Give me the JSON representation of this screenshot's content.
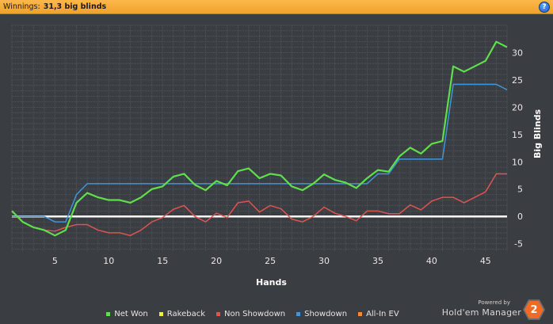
{
  "header": {
    "label": "Winnings:",
    "value": "31,3 big blinds",
    "help": "?"
  },
  "legend": [
    {
      "name": "Net Won",
      "color": "#5ee04a"
    },
    {
      "name": "Rakeback",
      "color": "#f0f03c"
    },
    {
      "name": "Non Showdown",
      "color": "#e0534f"
    },
    {
      "name": "Showdown",
      "color": "#3d96dc"
    },
    {
      "name": "All-In EV",
      "color": "#f08a3c"
    }
  ],
  "brand": {
    "powered": "Powered by",
    "name": "Hold'em Manager",
    "logo": "2"
  },
  "chart_data": {
    "type": "line",
    "xlabel": "Hands",
    "ylabel": "Big Blinds",
    "xlim": [
      1,
      47
    ],
    "ylim": [
      -6.5,
      35
    ],
    "xticks": [
      5,
      10,
      15,
      20,
      25,
      30,
      35,
      40,
      45
    ],
    "yticks": [
      -5,
      0,
      5,
      10,
      15,
      20,
      25,
      30
    ],
    "grid": true,
    "legend_position": "bottom",
    "x": [
      1,
      2,
      3,
      4,
      5,
      6,
      7,
      8,
      9,
      10,
      11,
      12,
      13,
      14,
      15,
      16,
      17,
      18,
      19,
      20,
      21,
      22,
      23,
      24,
      25,
      26,
      27,
      28,
      29,
      30,
      31,
      32,
      33,
      34,
      35,
      36,
      37,
      38,
      39,
      40,
      41,
      42,
      43,
      44,
      45,
      46,
      47
    ],
    "series": [
      {
        "name": "Net Won",
        "color": "#5ee04a",
        "values": [
          1,
          -1,
          -2,
          -2.5,
          -3.5,
          -2.5,
          2.5,
          4.3,
          3.5,
          3,
          3,
          2.5,
          3.5,
          5,
          5.5,
          7.3,
          7.8,
          5.8,
          4.8,
          6.5,
          5.7,
          8.3,
          8.8,
          7,
          7.8,
          7.5,
          5.5,
          4.8,
          6,
          7.7,
          6.7,
          6.2,
          5.2,
          7,
          8.5,
          8.2,
          11,
          12.6,
          11.5,
          13.3,
          13.8,
          27.5,
          26.5,
          27.5,
          28.5,
          32,
          31
        ]
      },
      {
        "name": "Non Showdown",
        "color": "#e0534f",
        "values": [
          1,
          -1,
          -2,
          -2.5,
          -2.7,
          -2,
          -1.5,
          -1.5,
          -2.5,
          -3,
          -3,
          -3.5,
          -2.5,
          -1,
          -0.2,
          1.3,
          2,
          0,
          -1,
          0.6,
          -0.2,
          2.5,
          2.8,
          0.8,
          2,
          1.4,
          -0.5,
          -1,
          0,
          1.7,
          0.6,
          0,
          -0.8,
          1,
          1,
          0.5,
          0.5,
          2.1,
          1.2,
          2.8,
          3.5,
          3.5,
          2.5,
          3.5,
          4.5,
          7.8,
          7.8
        ]
      },
      {
        "name": "Showdown",
        "color": "#3d96dc",
        "values": [
          0,
          0,
          0,
          0,
          -1,
          -1,
          4,
          6,
          6,
          6,
          6,
          6,
          6,
          6,
          6,
          6,
          6,
          6,
          6,
          6,
          6,
          6,
          6,
          6,
          6,
          6,
          6,
          6,
          6,
          6,
          6,
          6,
          6,
          6,
          7.8,
          7.8,
          10.5,
          10.5,
          10.5,
          10.5,
          10.5,
          24.2,
          24.2,
          24.2,
          24.2,
          24.2,
          23.2
        ]
      }
    ]
  }
}
